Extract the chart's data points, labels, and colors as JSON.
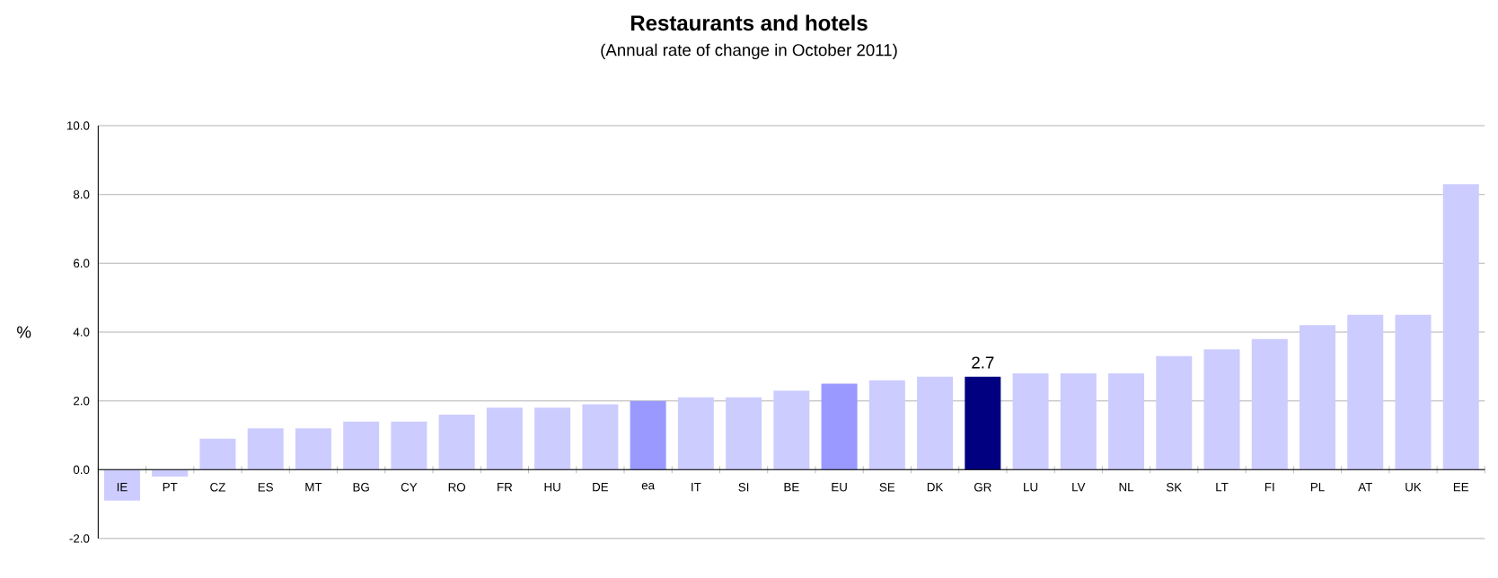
{
  "chart_data": {
    "type": "bar",
    "title": "Restaurants and hotels",
    "subtitle": "(Annual rate of change in October 2011)",
    "ylabel": "%",
    "categories": [
      "IE",
      "PT",
      "CZ",
      "ES",
      "MT",
      "BG",
      "CY",
      "RO",
      "FR",
      "HU",
      "DE",
      "ea",
      "IT",
      "SI",
      "BE",
      "EU",
      "SE",
      "DK",
      "GR",
      "LU",
      "LV",
      "NL",
      "SK",
      "LT",
      "FI",
      "PL",
      "AT",
      "UK",
      "EE"
    ],
    "values": [
      -0.9,
      -0.2,
      0.9,
      1.2,
      1.2,
      1.4,
      1.4,
      1.6,
      1.8,
      1.8,
      1.9,
      2.0,
      2.1,
      2.1,
      2.3,
      2.5,
      2.6,
      2.7,
      2.7,
      2.8,
      2.8,
      2.8,
      3.3,
      3.5,
      3.8,
      4.2,
      4.5,
      4.5,
      8.3
    ],
    "colors": [
      "#ccccff",
      "#ccccff",
      "#ccccff",
      "#ccccff",
      "#ccccff",
      "#ccccff",
      "#ccccff",
      "#ccccff",
      "#ccccff",
      "#ccccff",
      "#ccccff",
      "#9999ff",
      "#ccccff",
      "#ccccff",
      "#ccccff",
      "#9999ff",
      "#ccccff",
      "#ccccff",
      "#000080",
      "#ccccff",
      "#ccccff",
      "#ccccff",
      "#ccccff",
      "#ccccff",
      "#ccccff",
      "#ccccff",
      "#ccccff",
      "#ccccff",
      "#ccccff"
    ],
    "value_labels": [
      null,
      null,
      null,
      null,
      null,
      null,
      null,
      null,
      null,
      null,
      null,
      null,
      null,
      null,
      null,
      null,
      null,
      null,
      "2.7",
      null,
      null,
      null,
      null,
      null,
      null,
      null,
      null,
      null,
      null
    ],
    "ylim": [
      -2,
      10
    ],
    "yticks": [
      {
        "value": -2,
        "label": "-2.0"
      },
      {
        "value": 0,
        "label": "0.0"
      },
      {
        "value": 2,
        "label": "2.0"
      },
      {
        "value": 4,
        "label": "4.0"
      },
      {
        "value": 6,
        "label": "6.0"
      },
      {
        "value": 8,
        "label": "8.0"
      },
      {
        "value": 10,
        "label": "10.0"
      }
    ],
    "grid": "y"
  }
}
